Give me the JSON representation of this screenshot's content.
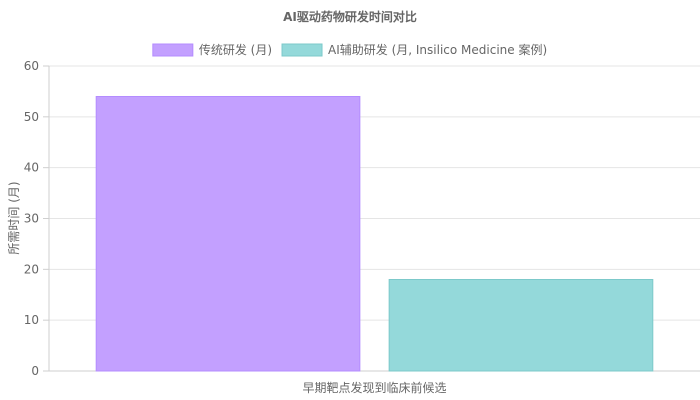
{
  "chart_data": {
    "type": "bar",
    "title": "AI驱动药物研发时间对比",
    "categories": [
      "早期靶点发现到临床前候选"
    ],
    "series": [
      {
        "name": "传统研发 (月)",
        "values": [
          54
        ],
        "fill": "#c3a0ff",
        "border": "#b48cff"
      },
      {
        "name": "AI辅助研发 (月, Insilico Medicine 案例)",
        "values": [
          18
        ],
        "fill": "#94d9da",
        "border": "#7cc9ca"
      }
    ],
    "xlabel": "",
    "ylabel": "所需时间 (月)",
    "ylim": [
      0,
      60
    ],
    "yticks": [
      0,
      10,
      20,
      30,
      40,
      50,
      60
    ],
    "grid": true,
    "legend_position": "top-center"
  }
}
